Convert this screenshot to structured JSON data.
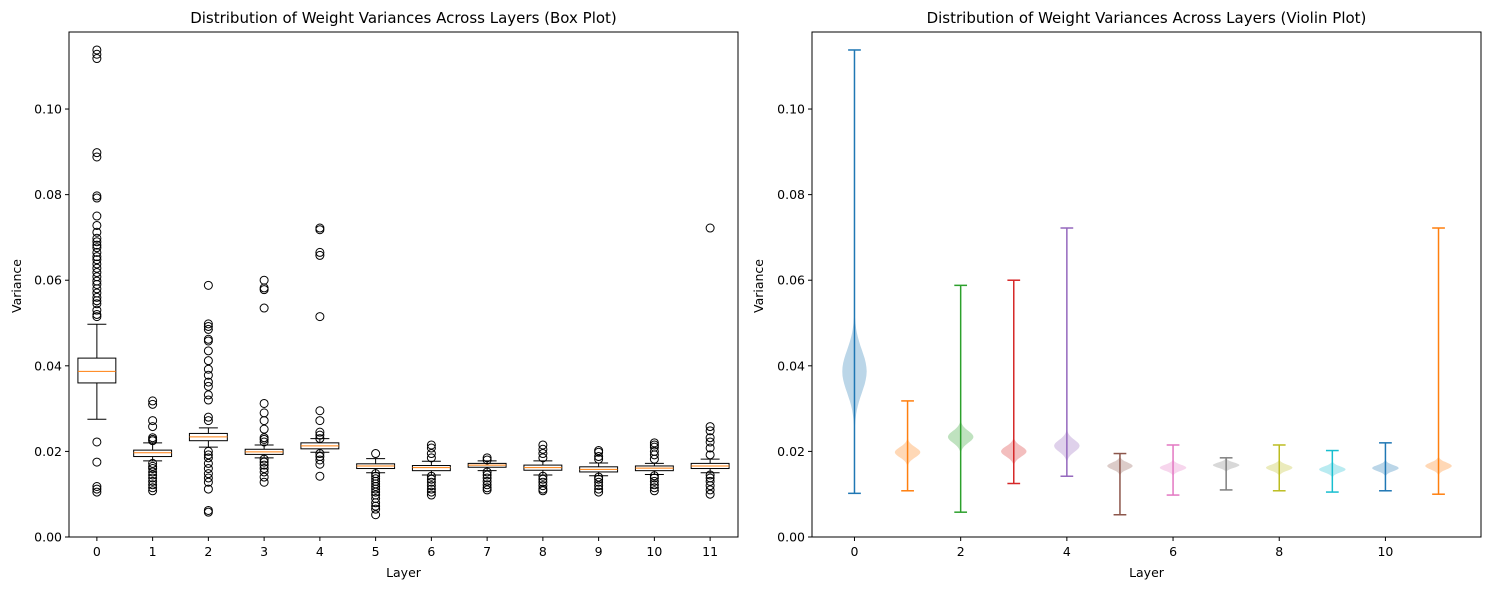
{
  "chart_data": [
    {
      "type": "box",
      "title": "Distribution of Weight Variances Across Layers (Box Plot)",
      "xlabel": "Layer",
      "ylabel": "Variance",
      "ylim": [
        0,
        0.118
      ],
      "x_ticks": [
        "0",
        "1",
        "2",
        "3",
        "4",
        "5",
        "6",
        "7",
        "8",
        "9",
        "10",
        "11"
      ],
      "y_ticks": [
        "0.00",
        "0.02",
        "0.04",
        "0.06",
        "0.08",
        "0.10"
      ],
      "y_tick_values": [
        0,
        0.02,
        0.04,
        0.06,
        0.08,
        0.1
      ],
      "grid": false,
      "boxes": [
        {
          "layer": 0,
          "q1": 0.036,
          "median": 0.0387,
          "q3": 0.0418,
          "whisker_low": 0.0275,
          "whisker_high": 0.0497,
          "outliers": [
            0.1138,
            0.1128,
            0.1118,
            0.0898,
            0.0888,
            0.0797,
            0.0792,
            0.075,
            0.0728,
            0.0712,
            0.0698,
            0.069,
            0.0682,
            0.0676,
            0.0665,
            0.0655,
            0.0648,
            0.0638,
            0.0628,
            0.0618,
            0.0608,
            0.0598,
            0.059,
            0.058,
            0.057,
            0.056,
            0.0552,
            0.0545,
            0.053,
            0.052,
            0.0515,
            0.0222,
            0.0175,
            0.0118,
            0.0112,
            0.0105
          ]
        },
        {
          "layer": 1,
          "q1": 0.0188,
          "median": 0.0197,
          "q3": 0.0203,
          "whisker_low": 0.0178,
          "whisker_high": 0.022,
          "outliers": [
            0.0318,
            0.031,
            0.0272,
            0.0258,
            0.0232,
            0.0228,
            0.0225,
            0.0172,
            0.0165,
            0.016,
            0.0152,
            0.0145,
            0.0138,
            0.013,
            0.0122,
            0.0115,
            0.0108
          ]
        },
        {
          "layer": 2,
          "q1": 0.0225,
          "median": 0.0234,
          "q3": 0.0242,
          "whisker_low": 0.021,
          "whisker_high": 0.0255,
          "outliers": [
            0.0588,
            0.0498,
            0.0492,
            0.0485,
            0.0462,
            0.0458,
            0.0435,
            0.0412,
            0.0392,
            0.0378,
            0.0362,
            0.0352,
            0.0332,
            0.032,
            0.028,
            0.0272,
            0.02,
            0.0192,
            0.0185,
            0.0172,
            0.016,
            0.0148,
            0.0138,
            0.0128,
            0.0112,
            0.0062,
            0.0058
          ]
        },
        {
          "layer": 3,
          "q1": 0.0193,
          "median": 0.0199,
          "q3": 0.0205,
          "whisker_low": 0.0185,
          "whisker_high": 0.0215,
          "outliers": [
            0.06,
            0.0582,
            0.0578,
            0.0535,
            0.0312,
            0.029,
            0.0272,
            0.0252,
            0.0232,
            0.0228,
            0.0222,
            0.0182,
            0.0175,
            0.0168,
            0.016,
            0.0152,
            0.014,
            0.0128
          ]
        },
        {
          "layer": 4,
          "q1": 0.0206,
          "median": 0.0213,
          "q3": 0.022,
          "whisker_low": 0.0198,
          "whisker_high": 0.023,
          "outliers": [
            0.0722,
            0.0718,
            0.0665,
            0.0658,
            0.0515,
            0.0295,
            0.0272,
            0.0245,
            0.0238,
            0.023,
            0.0195,
            0.0188,
            0.018,
            0.017,
            0.0142
          ]
        },
        {
          "layer": 5,
          "q1": 0.016,
          "median": 0.0166,
          "q3": 0.0171,
          "whisker_low": 0.015,
          "whisker_high": 0.0183,
          "outliers": [
            0.0195,
            0.0148,
            0.0142,
            0.0136,
            0.013,
            0.0124,
            0.0118,
            0.0112,
            0.0105,
            0.0098,
            0.009,
            0.008,
            0.0072,
            0.0065,
            0.0052
          ]
        },
        {
          "layer": 6,
          "q1": 0.0155,
          "median": 0.0162,
          "q3": 0.0167,
          "whisker_low": 0.0145,
          "whisker_high": 0.0177,
          "outliers": [
            0.0215,
            0.0208,
            0.0195,
            0.0185,
            0.0142,
            0.0135,
            0.0128,
            0.012,
            0.0112,
            0.0105,
            0.0098
          ]
        },
        {
          "layer": 7,
          "q1": 0.0163,
          "median": 0.0168,
          "q3": 0.0172,
          "whisker_low": 0.0155,
          "whisker_high": 0.0178,
          "outliers": [
            0.0185,
            0.018,
            0.0152,
            0.0145,
            0.0138,
            0.013,
            0.0122,
            0.0115,
            0.011
          ]
        },
        {
          "layer": 8,
          "q1": 0.0156,
          "median": 0.0162,
          "q3": 0.0168,
          "whisker_low": 0.0145,
          "whisker_high": 0.0178,
          "outliers": [
            0.0215,
            0.0205,
            0.0195,
            0.0185,
            0.0142,
            0.0135,
            0.0128,
            0.012,
            0.0112,
            0.0108
          ]
        },
        {
          "layer": 9,
          "q1": 0.0152,
          "median": 0.0158,
          "q3": 0.0164,
          "whisker_low": 0.0143,
          "whisker_high": 0.0173,
          "outliers": [
            0.0202,
            0.0198,
            0.0188,
            0.0182,
            0.014,
            0.0135,
            0.0128,
            0.012,
            0.0112,
            0.0105
          ]
        },
        {
          "layer": 10,
          "q1": 0.0155,
          "median": 0.0161,
          "q3": 0.0166,
          "whisker_low": 0.0146,
          "whisker_high": 0.0172,
          "outliers": [
            0.022,
            0.0215,
            0.021,
            0.02,
            0.0192,
            0.0182,
            0.0143,
            0.0138,
            0.013,
            0.0122,
            0.0115,
            0.0108
          ]
        },
        {
          "layer": 11,
          "q1": 0.016,
          "median": 0.0166,
          "q3": 0.0172,
          "whisker_low": 0.015,
          "whisker_high": 0.0182,
          "outliers": [
            0.0722,
            0.0258,
            0.0248,
            0.0232,
            0.0222,
            0.0208,
            0.0192,
            0.0145,
            0.0138,
            0.013,
            0.012,
            0.011,
            0.01
          ]
        }
      ]
    },
    {
      "type": "violin",
      "title": "Distribution of Weight Variances Across Layers (Violin Plot)",
      "xlabel": "Layer",
      "ylabel": "Variance",
      "ylim": [
        0,
        0.118
      ],
      "x_ticks": [
        "0",
        "2",
        "4",
        "6",
        "8",
        "10"
      ],
      "x_tick_values": [
        0,
        2,
        4,
        6,
        8,
        10
      ],
      "y_ticks": [
        "0.00",
        "0.02",
        "0.04",
        "0.06",
        "0.08",
        "0.10"
      ],
      "y_tick_values": [
        0,
        0.02,
        0.04,
        0.06,
        0.08,
        0.1
      ],
      "grid": false,
      "violins": [
        {
          "layer": 0,
          "min": 0.0102,
          "max": 0.1138,
          "center": 0.0387,
          "spread": 0.005,
          "halfwidth": 0.23,
          "color": "#1f77b4"
        },
        {
          "layer": 1,
          "min": 0.0108,
          "max": 0.0318,
          "center": 0.0198,
          "spread": 0.0012,
          "halfwidth": 0.24,
          "color": "#ff7f0e"
        },
        {
          "layer": 2,
          "min": 0.0058,
          "max": 0.0588,
          "center": 0.0234,
          "spread": 0.0014,
          "halfwidth": 0.24,
          "color": "#2ca02c"
        },
        {
          "layer": 3,
          "min": 0.0125,
          "max": 0.06,
          "center": 0.02,
          "spread": 0.0012,
          "halfwidth": 0.24,
          "color": "#d62728"
        },
        {
          "layer": 4,
          "min": 0.0142,
          "max": 0.0722,
          "center": 0.0213,
          "spread": 0.0014,
          "halfwidth": 0.24,
          "color": "#9467bd"
        },
        {
          "layer": 5,
          "min": 0.0052,
          "max": 0.0195,
          "center": 0.0166,
          "spread": 0.0008,
          "halfwidth": 0.24,
          "color": "#8c564b"
        },
        {
          "layer": 6,
          "min": 0.0098,
          "max": 0.0215,
          "center": 0.0162,
          "spread": 0.0007,
          "halfwidth": 0.25,
          "color": "#e377c2"
        },
        {
          "layer": 7,
          "min": 0.011,
          "max": 0.0185,
          "center": 0.0168,
          "spread": 0.0006,
          "halfwidth": 0.25,
          "color": "#7f7f7f"
        },
        {
          "layer": 8,
          "min": 0.0108,
          "max": 0.0215,
          "center": 0.0162,
          "spread": 0.0007,
          "halfwidth": 0.25,
          "color": "#bcbd22"
        },
        {
          "layer": 9,
          "min": 0.0105,
          "max": 0.0202,
          "center": 0.0158,
          "spread": 0.0007,
          "halfwidth": 0.25,
          "color": "#17becf"
        },
        {
          "layer": 10,
          "min": 0.0108,
          "max": 0.022,
          "center": 0.0161,
          "spread": 0.0007,
          "halfwidth": 0.25,
          "color": "#1f77b4"
        },
        {
          "layer": 11,
          "min": 0.01,
          "max": 0.0722,
          "center": 0.0166,
          "spread": 0.0008,
          "halfwidth": 0.25,
          "color": "#ff7f0e"
        }
      ]
    }
  ]
}
